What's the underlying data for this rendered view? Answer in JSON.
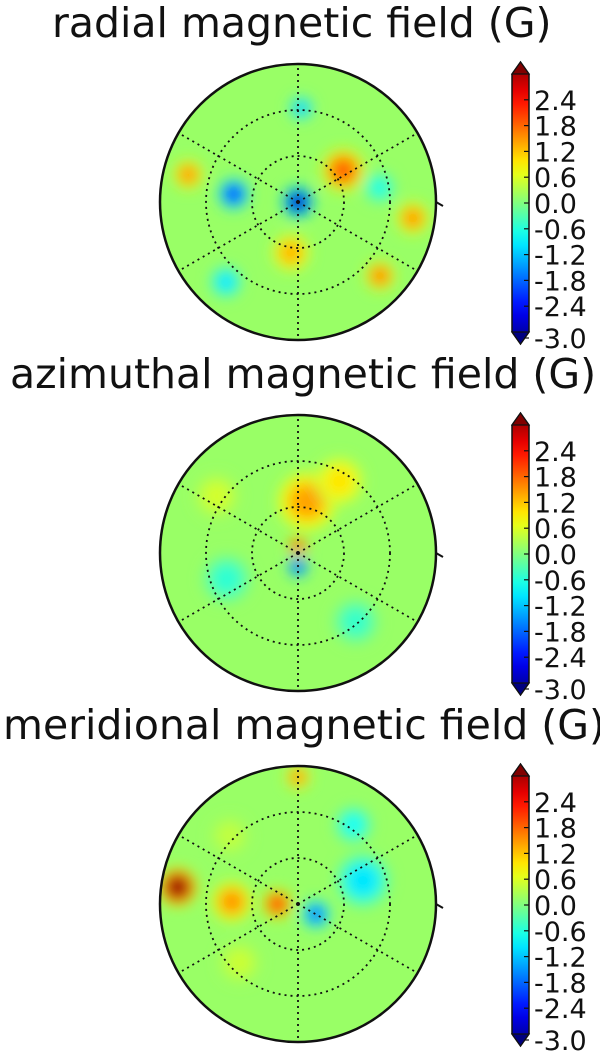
{
  "chart_data": [
    {
      "type": "heatmap",
      "projection": "polar",
      "title": "radial magnetic field (G)",
      "colorbar": {
        "ticks": [
          "2.4",
          "1.8",
          "1.2",
          "0.6",
          "0.0",
          "-0.6",
          "-1.2",
          "-1.8",
          "-2.4",
          "-3.0"
        ],
        "range": [
          -3.0,
          3.0
        ],
        "colormap": "jet"
      },
      "blobs": [
        {
          "r": 0.0,
          "theta_deg": 0,
          "value": -2.6,
          "spread": 0.1
        },
        {
          "r": 0.4,
          "theta_deg": 35,
          "value": 1.7,
          "spread": 0.14
        },
        {
          "r": 0.47,
          "theta_deg": 173,
          "value": -1.9,
          "spread": 0.1
        },
        {
          "r": 0.82,
          "theta_deg": 166,
          "value": 1.4,
          "spread": 0.09
        },
        {
          "r": 0.84,
          "theta_deg": 352,
          "value": 1.4,
          "spread": 0.1
        },
        {
          "r": 0.8,
          "theta_deg": 318,
          "value": 1.5,
          "spread": 0.09
        },
        {
          "r": 0.37,
          "theta_deg": 262,
          "value": 1.2,
          "spread": 0.12
        },
        {
          "r": 0.68,
          "theta_deg": 88,
          "value": -1.1,
          "spread": 0.07
        },
        {
          "r": 0.78,
          "theta_deg": 228,
          "value": -0.9,
          "spread": 0.1
        },
        {
          "r": 0.6,
          "theta_deg": 10,
          "value": -0.6,
          "spread": 0.1
        }
      ]
    },
    {
      "type": "heatmap",
      "projection": "polar",
      "title": "azimuthal magnetic field (G)",
      "colorbar": {
        "ticks": [
          "2.4",
          "1.8",
          "1.2",
          "0.6",
          "0.0",
          "-0.6",
          "-1.2",
          "-1.8",
          "-2.4",
          "-3.0"
        ],
        "range": [
          -3.0,
          3.0
        ],
        "colormap": "jet"
      },
      "blobs": [
        {
          "r": 0.05,
          "theta_deg": 90,
          "value": 2.2,
          "spread": 0.05
        },
        {
          "r": 0.1,
          "theta_deg": 270,
          "value": -2.0,
          "spread": 0.06
        },
        {
          "r": 0.38,
          "theta_deg": 80,
          "value": 1.3,
          "spread": 0.2
        },
        {
          "r": 0.6,
          "theta_deg": 60,
          "value": 0.9,
          "spread": 0.16
        },
        {
          "r": 0.72,
          "theta_deg": 145,
          "value": 0.5,
          "spread": 0.14
        },
        {
          "r": 0.55,
          "theta_deg": 200,
          "value": -0.5,
          "spread": 0.16
        },
        {
          "r": 0.65,
          "theta_deg": 310,
          "value": -0.45,
          "spread": 0.15
        }
      ]
    },
    {
      "type": "heatmap",
      "projection": "polar",
      "title": "meridional magnetic field (G)",
      "colorbar": {
        "ticks": [
          "2.4",
          "1.8",
          "1.2",
          "0.6",
          "0.0",
          "-0.6",
          "-1.2",
          "-1.8",
          "-2.4",
          "-3.0"
        ],
        "range": [
          -3.0,
          3.0
        ],
        "colormap": "jet"
      },
      "blobs": [
        {
          "r": 0.88,
          "theta_deg": 172,
          "value": 3.0,
          "spread": 0.12
        },
        {
          "r": 0.15,
          "theta_deg": 180,
          "value": 2.0,
          "spread": 0.09
        },
        {
          "r": 0.48,
          "theta_deg": 178,
          "value": 1.4,
          "spread": 0.13
        },
        {
          "r": 0.92,
          "theta_deg": 90,
          "value": 1.4,
          "spread": 0.07
        },
        {
          "r": 0.15,
          "theta_deg": 330,
          "value": -1.6,
          "spread": 0.09
        },
        {
          "r": 0.5,
          "theta_deg": 20,
          "value": -0.9,
          "spread": 0.18
        },
        {
          "r": 0.7,
          "theta_deg": 55,
          "value": -0.7,
          "spread": 0.12
        },
        {
          "r": 0.6,
          "theta_deg": 225,
          "value": 0.45,
          "spread": 0.13
        },
        {
          "r": 0.7,
          "theta_deg": 135,
          "value": 0.4,
          "spread": 0.12
        }
      ]
    }
  ]
}
